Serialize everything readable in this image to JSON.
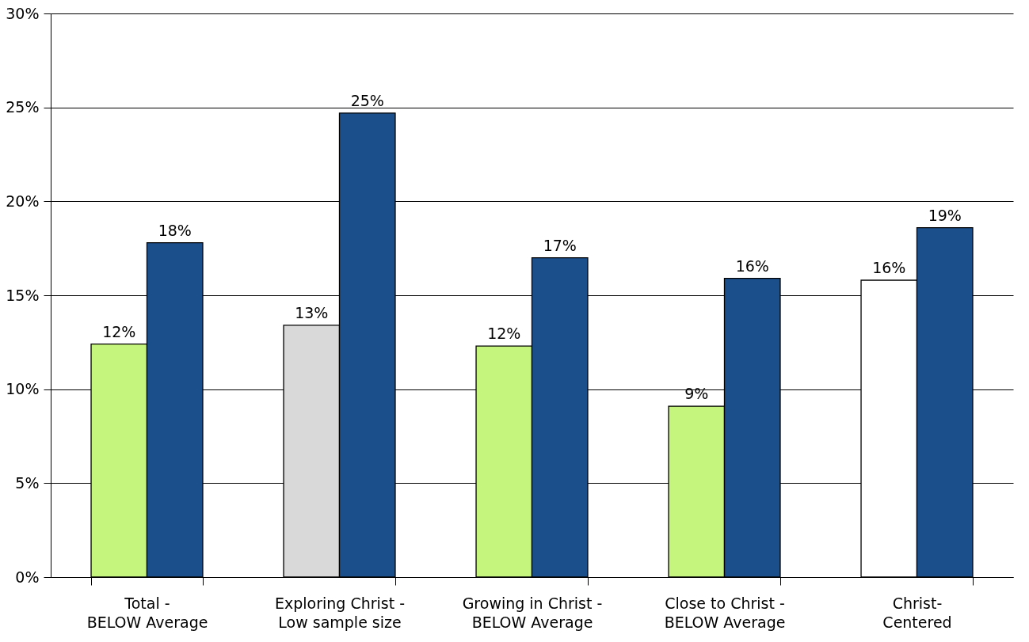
{
  "chart_data": {
    "type": "bar",
    "categories": [
      "Total -\nBELOW Average",
      "Exploring Christ -\nLow sample size",
      "Growing in Christ -\nBELOW Average",
      "Close to Christ -\nBELOW Average",
      "Christ-\nCentered"
    ],
    "series": [
      {
        "colors": [
          "#c6f57e",
          "#d9d9d9",
          "#c6f57e",
          "#c6f57e",
          "#ffffff"
        ],
        "values": [
          12.4,
          13.4,
          12.3,
          9.1,
          15.8
        ],
        "value_labels": [
          "12%",
          "13%",
          "12%",
          "9%",
          "16%"
        ]
      },
      {
        "color": "#1b4f8c",
        "values": [
          17.8,
          24.7,
          17.0,
          15.9,
          18.6
        ],
        "value_labels": [
          "18%",
          "25%",
          "17%",
          "16%",
          "19%"
        ]
      }
    ],
    "ylim": [
      0,
      30
    ],
    "yticks": [
      {
        "value": 0,
        "label": "0%"
      },
      {
        "value": 5,
        "label": "5%"
      },
      {
        "value": 10,
        "label": "10%"
      },
      {
        "value": 15,
        "label": "15%"
      },
      {
        "value": 20,
        "label": "20%"
      },
      {
        "value": 25,
        "label": "25%"
      },
      {
        "value": 30,
        "label": "30%"
      }
    ],
    "grid": "y"
  }
}
